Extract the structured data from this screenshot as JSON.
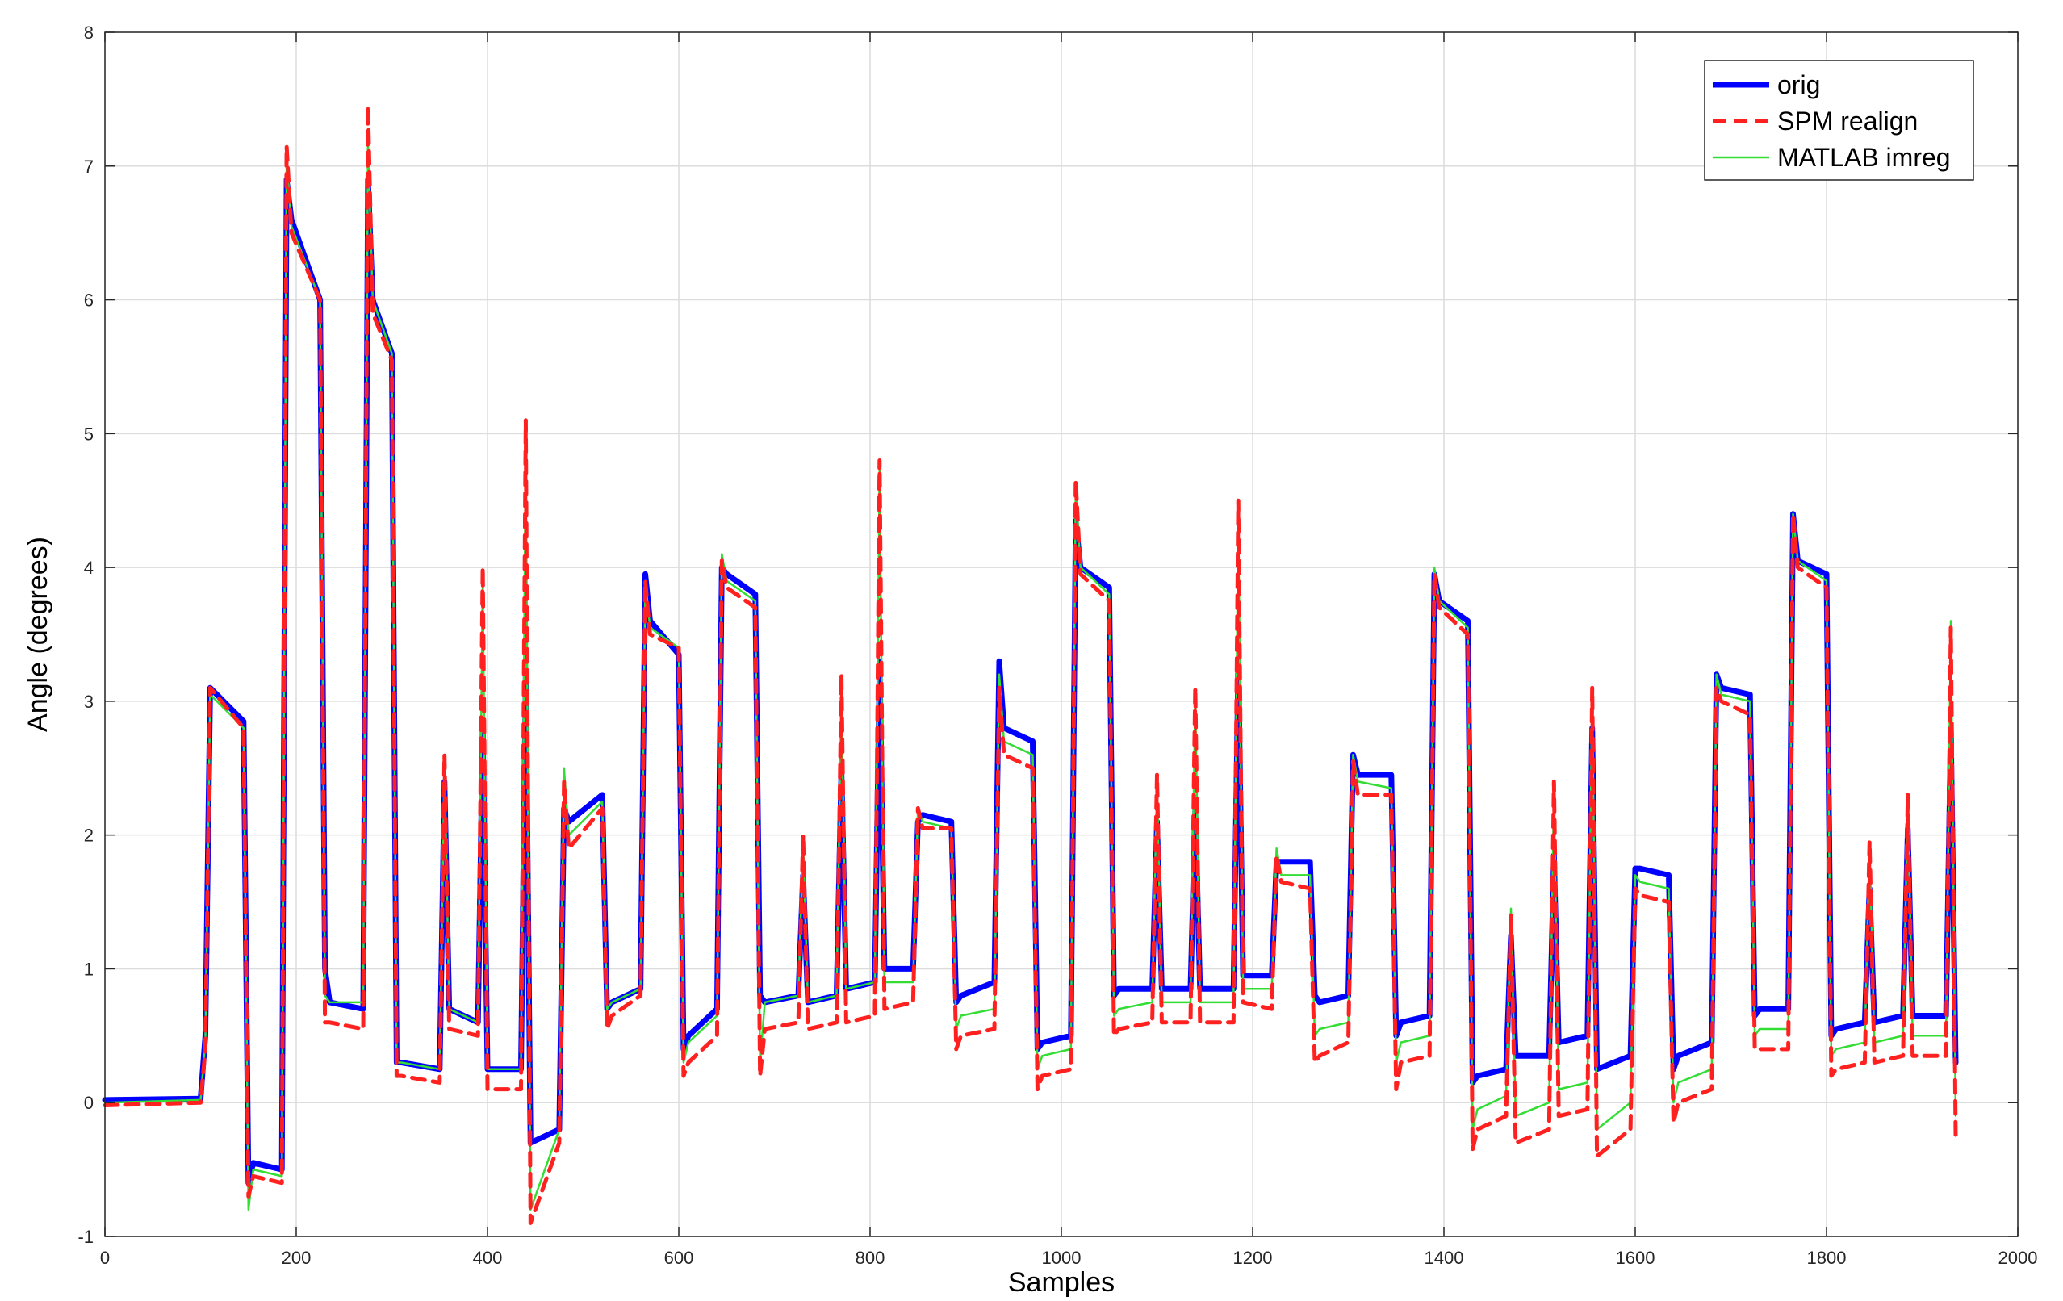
{
  "chart_data": {
    "type": "line",
    "title": "",
    "xlabel": "Samples",
    "ylabel": "Angle (degrees)",
    "xlim": [
      0,
      2000
    ],
    "ylim": [
      -1,
      8
    ],
    "xticks": [
      0,
      200,
      400,
      600,
      800,
      1000,
      1200,
      1400,
      1600,
      1800,
      2000
    ],
    "yticks": [
      -1,
      0,
      1,
      2,
      3,
      4,
      5,
      6,
      7,
      8
    ],
    "xtick_labels": [
      "0",
      "200",
      "400",
      "600",
      "800",
      "1000",
      "1200",
      "1400",
      "1600",
      "1800",
      "2000"
    ],
    "ytick_labels": [
      "-1",
      "0",
      "1",
      "2",
      "3",
      "4",
      "5",
      "6",
      "7",
      "8"
    ],
    "grid": true,
    "legend_position": "top-right",
    "x_points": [
      0,
      100,
      105,
      110,
      145,
      150,
      155,
      185,
      190,
      195,
      225,
      230,
      235,
      270,
      275,
      280,
      300,
      305,
      310,
      350,
      355,
      360,
      390,
      395,
      400,
      435,
      440,
      445,
      475,
      480,
      485,
      520,
      525,
      530,
      560,
      565,
      570,
      600,
      605,
      610,
      640,
      645,
      650,
      680,
      685,
      690,
      725,
      730,
      735,
      765,
      770,
      775,
      805,
      810,
      815,
      845,
      850,
      855,
      885,
      890,
      895,
      930,
      935,
      940,
      970,
      975,
      980,
      1010,
      1015,
      1020,
      1050,
      1055,
      1060,
      1095,
      1100,
      1105,
      1135,
      1140,
      1145,
      1180,
      1185,
      1190,
      1220,
      1225,
      1230,
      1260,
      1265,
      1270,
      1300,
      1305,
      1310,
      1345,
      1350,
      1355,
      1385,
      1390,
      1395,
      1425,
      1430,
      1435,
      1465,
      1470,
      1475,
      1510,
      1515,
      1520,
      1550,
      1555,
      1560,
      1595,
      1600,
      1605,
      1635,
      1640,
      1645,
      1680,
      1685,
      1690,
      1720,
      1725,
      1730,
      1760,
      1765,
      1770,
      1800,
      1805,
      1810,
      1840,
      1845,
      1850,
      1880,
      1885,
      1890,
      1925,
      1930,
      1935
    ],
    "series": [
      {
        "name": "orig",
        "color": "#0000ff",
        "style": "solid",
        "values": [
          0.02,
          0.03,
          0.5,
          3.1,
          2.85,
          -0.6,
          -0.45,
          -0.5,
          6.9,
          6.6,
          6.0,
          1.0,
          0.75,
          0.7,
          6.9,
          6.0,
          5.6,
          0.3,
          0.3,
          0.25,
          2.4,
          0.7,
          0.6,
          2.8,
          0.25,
          0.25,
          3.2,
          -0.3,
          -0.2,
          2.2,
          2.1,
          2.3,
          0.7,
          0.75,
          0.85,
          3.95,
          3.6,
          3.35,
          0.4,
          0.5,
          0.7,
          4.0,
          3.95,
          3.8,
          0.8,
          0.75,
          0.8,
          1.7,
          0.75,
          0.8,
          2.5,
          0.85,
          0.9,
          3.3,
          1.0,
          1.0,
          2.1,
          2.15,
          2.1,
          0.75,
          0.8,
          0.9,
          3.3,
          2.8,
          2.7,
          0.4,
          0.45,
          0.5,
          4.35,
          4.0,
          3.85,
          0.8,
          0.85,
          0.85,
          2.1,
          0.85,
          0.85,
          2.2,
          0.85,
          0.85,
          3.3,
          0.95,
          0.95,
          1.8,
          1.8,
          1.8,
          0.8,
          0.75,
          0.8,
          2.6,
          2.45,
          2.45,
          0.5,
          0.6,
          0.65,
          3.95,
          3.75,
          3.6,
          0.15,
          0.2,
          0.25,
          1.25,
          0.35,
          0.35,
          1.85,
          0.45,
          0.5,
          2.8,
          0.25,
          0.35,
          1.75,
          1.75,
          1.7,
          0.25,
          0.35,
          0.45,
          3.2,
          3.1,
          3.05,
          0.65,
          0.7,
          0.7,
          4.4,
          4.05,
          3.95,
          0.5,
          0.55,
          0.6,
          1.6,
          0.6,
          0.65,
          2.05,
          0.65,
          0.65,
          2.8,
          0.3
        ]
      },
      {
        "name": "SPM realign",
        "color": "#ff2020",
        "style": "dashed",
        "values": [
          -0.02,
          0.0,
          0.4,
          3.1,
          2.8,
          -0.7,
          -0.55,
          -0.6,
          7.15,
          6.5,
          6.0,
          0.6,
          0.6,
          0.55,
          7.45,
          5.9,
          5.55,
          0.2,
          0.2,
          0.15,
          2.6,
          0.55,
          0.5,
          4.0,
          0.1,
          0.1,
          5.1,
          -0.9,
          -0.3,
          2.4,
          1.9,
          2.2,
          0.55,
          0.65,
          0.8,
          3.9,
          3.5,
          3.4,
          0.2,
          0.3,
          0.5,
          4.05,
          3.85,
          3.7,
          0.2,
          0.55,
          0.6,
          2.0,
          0.55,
          0.6,
          3.2,
          0.6,
          0.65,
          4.8,
          0.7,
          0.75,
          2.2,
          2.05,
          2.05,
          0.4,
          0.5,
          0.55,
          3.1,
          2.6,
          2.5,
          0.1,
          0.2,
          0.25,
          4.65,
          3.95,
          3.75,
          0.5,
          0.55,
          0.6,
          2.45,
          0.6,
          0.6,
          3.1,
          0.6,
          0.6,
          4.5,
          0.75,
          0.7,
          1.85,
          1.65,
          1.6,
          0.3,
          0.35,
          0.45,
          2.55,
          2.3,
          2.3,
          0.1,
          0.3,
          0.35,
          3.95,
          3.7,
          3.5,
          -0.35,
          -0.2,
          -0.1,
          1.4,
          -0.3,
          -0.2,
          2.4,
          -0.1,
          -0.05,
          3.1,
          -0.4,
          -0.2,
          1.6,
          1.55,
          1.5,
          -0.15,
          0.0,
          0.1,
          3.1,
          3.0,
          2.9,
          0.4,
          0.4,
          0.4,
          4.4,
          4.0,
          3.85,
          0.2,
          0.25,
          0.3,
          1.95,
          0.3,
          0.35,
          2.3,
          0.35,
          0.35,
          3.55,
          -0.25
        ]
      },
      {
        "name": "MATLAB imreg",
        "color": "#33dd33",
        "style": "solid-thin",
        "values": [
          0.0,
          0.02,
          0.45,
          3.05,
          2.8,
          -0.8,
          -0.5,
          -0.55,
          7.05,
          6.55,
          6.0,
          0.8,
          0.75,
          0.75,
          7.2,
          6.0,
          5.6,
          0.3,
          0.3,
          0.25,
          2.55,
          0.7,
          0.6,
          3.9,
          0.25,
          0.25,
          5.0,
          -0.8,
          -0.2,
          2.5,
          2.0,
          2.25,
          0.7,
          0.75,
          0.85,
          3.9,
          3.55,
          3.4,
          0.3,
          0.45,
          0.65,
          4.1,
          3.9,
          3.75,
          0.3,
          0.75,
          0.8,
          1.95,
          0.75,
          0.8,
          3.1,
          0.85,
          0.9,
          4.75,
          0.9,
          0.9,
          2.2,
          2.1,
          2.05,
          0.55,
          0.65,
          0.7,
          3.2,
          2.7,
          2.6,
          0.25,
          0.35,
          0.4,
          4.6,
          4.0,
          3.8,
          0.65,
          0.7,
          0.75,
          2.4,
          0.75,
          0.75,
          3.05,
          0.75,
          0.75,
          4.4,
          0.85,
          0.85,
          1.9,
          1.7,
          1.7,
          0.5,
          0.55,
          0.6,
          2.6,
          2.4,
          2.35,
          0.3,
          0.45,
          0.5,
          4.0,
          3.75,
          3.55,
          -0.2,
          -0.05,
          0.05,
          1.45,
          -0.1,
          0.0,
          2.35,
          0.1,
          0.15,
          3.1,
          -0.2,
          0.0,
          1.7,
          1.65,
          1.6,
          0.0,
          0.15,
          0.25,
          3.2,
          3.05,
          3.0,
          0.5,
          0.55,
          0.55,
          4.4,
          4.05,
          3.9,
          0.35,
          0.4,
          0.45,
          1.95,
          0.45,
          0.5,
          2.3,
          0.5,
          0.5,
          3.6,
          -0.1
        ]
      }
    ]
  },
  "legend": {
    "items": [
      {
        "label": "orig",
        "color": "#0000ff"
      },
      {
        "label": "SPM realign",
        "color": "#ff2020"
      },
      {
        "label": "MATLAB imreg",
        "color": "#33dd33"
      }
    ]
  }
}
